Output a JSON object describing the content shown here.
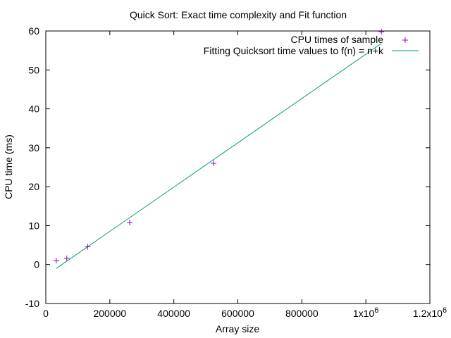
{
  "chart_data": {
    "type": "scatter",
    "title": "Quick Sort: Exact time complexity and Fit function",
    "xlabel": "Array size",
    "ylabel": "CPU time (ms)",
    "xlim": [
      0,
      1200000
    ],
    "ylim": [
      -10,
      60
    ],
    "xticks": [
      {
        "value": 0,
        "label": "0"
      },
      {
        "value": 200000,
        "label": "200000"
      },
      {
        "value": 400000,
        "label": "400000"
      },
      {
        "value": 600000,
        "label": "600000"
      },
      {
        "value": 800000,
        "label": "800000"
      },
      {
        "value": 1000000,
        "label": "1x10",
        "exp": "6"
      },
      {
        "value": 1200000,
        "label": "1.2x10",
        "exp": "6"
      }
    ],
    "yticks": [
      {
        "value": -10,
        "label": "-10"
      },
      {
        "value": 0,
        "label": "0"
      },
      {
        "value": 10,
        "label": "10"
      },
      {
        "value": 20,
        "label": "20"
      },
      {
        "value": 30,
        "label": "30"
      },
      {
        "value": 40,
        "label": "40"
      },
      {
        "value": 50,
        "label": "50"
      },
      {
        "value": 60,
        "label": "60"
      }
    ],
    "grid": false,
    "legend_position": "top-right",
    "series": [
      {
        "name": "CPU times of sample",
        "kind": "points",
        "color": "#9400d3",
        "x": [
          32768,
          65536,
          131072,
          262144,
          524288,
          1048576
        ],
        "y": [
          1.0,
          1.6,
          4.6,
          10.8,
          26.0,
          59.8
        ]
      },
      {
        "name": "Fitting Quicksort time values to f(n) = n+k",
        "kind": "line",
        "color": "#009e73",
        "x": [
          32768,
          1048576
        ],
        "y": [
          -1.0,
          56.8
        ]
      }
    ]
  }
}
